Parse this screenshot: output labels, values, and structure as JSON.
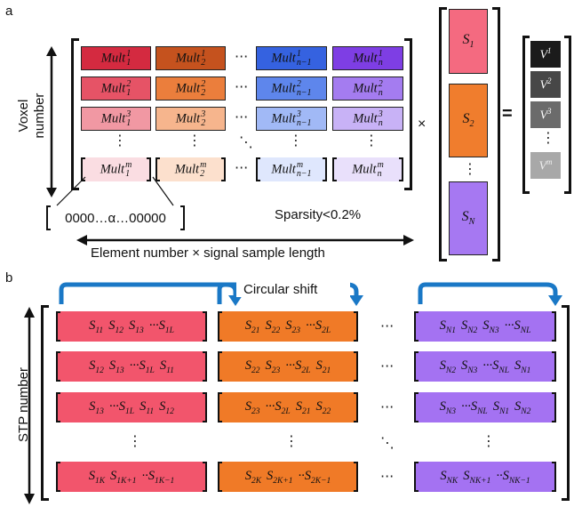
{
  "panel_a": {
    "label": "a",
    "y_axis_line1": "Voxel",
    "y_axis_line2": "number",
    "x_axis": "Element number × signal sample length",
    "sparsity": "Sparsity<0.2%",
    "zoom_text": "0000…α…00000",
    "times": "×",
    "equals": "=",
    "mult_base": "Mult",
    "row_sup": [
      "1",
      "2",
      "3",
      "m"
    ],
    "col_sub": [
      "1",
      "2",
      "n−1",
      "n"
    ],
    "signal_base": "S",
    "signal_subs": [
      "1",
      "2",
      "N"
    ],
    "output_base": "V",
    "output_sups": [
      "1",
      "2",
      "3",
      "m"
    ],
    "colors": {
      "red": [
        "#d42a40",
        "#e65366",
        "#f198a3",
        "#fadde2"
      ],
      "orange": [
        "#c5521e",
        "#eb7e3c",
        "#f6b58d",
        "#fce0cd"
      ],
      "blue": [
        "#3562e0",
        "#5e86ec",
        "#a1b9f6",
        "#dfe7fd"
      ],
      "purple": [
        "#7e3ee4",
        "#a47cf0",
        "#c8b2f6",
        "#e9e0fb"
      ],
      "s1": "#f46a80",
      "s2": "#f07d2d",
      "sN": "#a678f2",
      "v": [
        "#1b1b1b",
        "#474747",
        "#6b6b6b",
        "#a8a8a8"
      ]
    }
  },
  "panel_b": {
    "label": "b",
    "y_axis": "STP number",
    "circular_shift": "Circular shift",
    "colors": {
      "red": "#f2556c",
      "orange": "#f07a27",
      "purple": "#a472f2",
      "arrow": "#1a78c6"
    },
    "red_rows": [
      [
        [
          "S",
          "11"
        ],
        [
          "S",
          "12"
        ],
        [
          "S",
          "13"
        ],
        [
          "···S",
          "1L"
        ]
      ],
      [
        [
          "S",
          "12"
        ],
        [
          "S",
          "13"
        ],
        [
          "···S",
          "1L"
        ],
        [
          "S",
          "11"
        ]
      ],
      [
        [
          "S",
          "13"
        ],
        [
          "···S",
          "1L"
        ],
        [
          "S",
          "11"
        ],
        [
          "S",
          "12"
        ]
      ],
      [
        [
          "S",
          "1K"
        ],
        [
          "S",
          "1K+1"
        ],
        [
          "··S",
          "1K−1"
        ]
      ]
    ],
    "orange_rows": [
      [
        [
          "S",
          "21"
        ],
        [
          "S",
          "22"
        ],
        [
          "S",
          "23"
        ],
        [
          "···S",
          "2L"
        ]
      ],
      [
        [
          "S",
          "22"
        ],
        [
          "S",
          "23"
        ],
        [
          "···S",
          "2L"
        ],
        [
          "S",
          "21"
        ]
      ],
      [
        [
          "S",
          "23"
        ],
        [
          "···S",
          "2L"
        ],
        [
          "S",
          "21"
        ],
        [
          "S",
          "22"
        ]
      ],
      [
        [
          "S",
          "2K"
        ],
        [
          "S",
          "2K+1"
        ],
        [
          "··S",
          "2K−1"
        ]
      ]
    ],
    "purple_rows": [
      [
        [
          "S",
          "N1"
        ],
        [
          "S",
          "N2"
        ],
        [
          "S",
          "N3"
        ],
        [
          "···S",
          "NL"
        ]
      ],
      [
        [
          "S",
          "N2"
        ],
        [
          "S",
          "N3"
        ],
        [
          "···S",
          "NL"
        ],
        [
          "S",
          "N1"
        ]
      ],
      [
        [
          "S",
          "N3"
        ],
        [
          "···S",
          "NL"
        ],
        [
          "S",
          "N1"
        ],
        [
          "S",
          "N2"
        ]
      ],
      [
        [
          "S",
          "NK"
        ],
        [
          "S",
          "NK+1"
        ],
        [
          "··S",
          "NK−1"
        ]
      ]
    ]
  }
}
